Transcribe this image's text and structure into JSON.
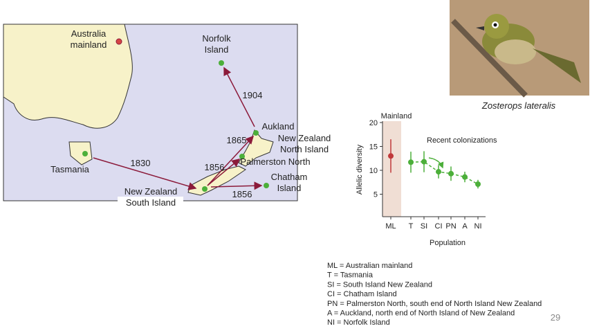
{
  "map": {
    "labels": [
      {
        "lines": [
          "Australia",
          "mainland"
        ]
      },
      {
        "lines": [
          "Norfolk",
          "Island"
        ]
      },
      {
        "lines": [
          "1904"
        ]
      },
      {
        "lines": [
          "Aukland"
        ]
      },
      {
        "lines": [
          "1865"
        ]
      },
      {
        "lines": [
          "New Zealand",
          "North Island"
        ]
      },
      {
        "lines": [
          "1856"
        ]
      },
      {
        "lines": [
          "Palmerston North"
        ]
      },
      {
        "lines": [
          "Tasmania"
        ]
      },
      {
        "lines": [
          "1830"
        ]
      },
      {
        "lines": [
          "Chatham",
          "Island"
        ]
      },
      {
        "lines": [
          "New Zealand",
          "South Island"
        ]
      },
      {
        "lines": [
          "1856"
        ]
      }
    ]
  },
  "photo": {
    "caption": "Zosterops lateralis"
  },
  "chart_data": {
    "type": "errorbar",
    "region_label": "Mainland",
    "annotation": "Recent colonizations",
    "x_label": "Population",
    "y_label": "Allelic diversity",
    "categories": [
      "ML",
      "T",
      "SI",
      "CI",
      "PN",
      "A",
      "NI"
    ],
    "values": [
      13,
      11.7,
      11.8,
      9.7,
      9.3,
      8.6,
      7.1
    ],
    "errors": [
      3.5,
      2.2,
      2.2,
      1.4,
      1.5,
      1.1,
      0.9
    ],
    "colors": [
      "#c0393b",
      "#4caf3a",
      "#4caf3a",
      "#4caf3a",
      "#4caf3a",
      "#4caf3a",
      "#4caf3a"
    ],
    "ylim": [
      0,
      20
    ],
    "yticks": [
      5,
      10,
      15,
      20
    ]
  },
  "key": [
    "ML = Australian mainland",
    "T = Tasmania",
    "SI = South Island New Zealand",
    "CI = Chatham Island",
    "PN = Palmerston North, south end of North Island New Zealand",
    "A = Auckland, north end of North Island of New Zealand",
    "NI = Norfolk Island"
  ],
  "slide_number": "29"
}
